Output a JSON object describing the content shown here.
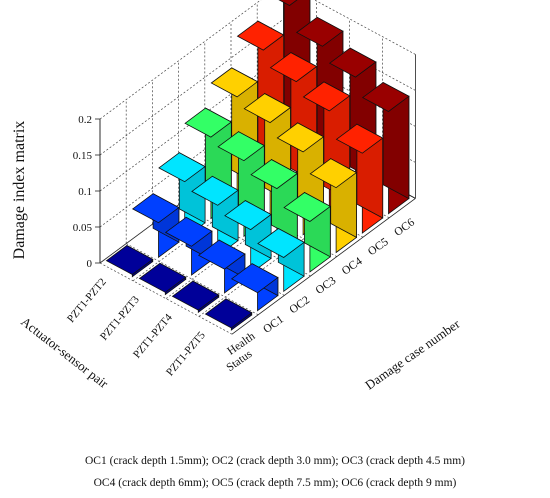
{
  "chart_data": {
    "type": "bar3d",
    "title": "",
    "zlabel": "Damage index matrix",
    "xlabel": "Damage case number",
    "ylabel": "Actuator-sensor pair",
    "damage_cases": [
      "Health Status",
      "OC1",
      "OC2",
      "OC3",
      "OC4",
      "OC5",
      "OC6"
    ],
    "pairs": [
      "PZT1-PZT2",
      "PZT1-PZT3",
      "PZT1-PZT4",
      "PZT1-PZT5"
    ],
    "zlim": [
      0,
      0.2
    ],
    "zticks": [
      "0",
      "0.05",
      "0.1",
      "0.15",
      "0.2"
    ],
    "grid": true,
    "colors": [
      "#000099",
      "#0040ff",
      "#00e5ff",
      "#33ff66",
      "#ffd000",
      "#ff2200",
      "#990000"
    ],
    "values": [
      [
        0.003,
        0.048,
        0.078,
        0.113,
        0.142,
        0.18,
        0.215
      ],
      [
        0.003,
        0.04,
        0.07,
        0.105,
        0.131,
        0.161,
        0.183
      ],
      [
        0.003,
        0.033,
        0.061,
        0.091,
        0.115,
        0.145,
        0.165
      ],
      [
        0.003,
        0.025,
        0.047,
        0.07,
        0.09,
        0.111,
        0.142
      ]
    ]
  },
  "caption": {
    "line1": "OC1 (crack depth 1.5mm); OC2 (crack depth 3.0 mm); OC3 (crack depth 4.5 mm)",
    "line2": "OC4 (crack depth 6mm); OC5 (crack depth 7.5 mm); OC6 (crack depth 9 mm)"
  }
}
